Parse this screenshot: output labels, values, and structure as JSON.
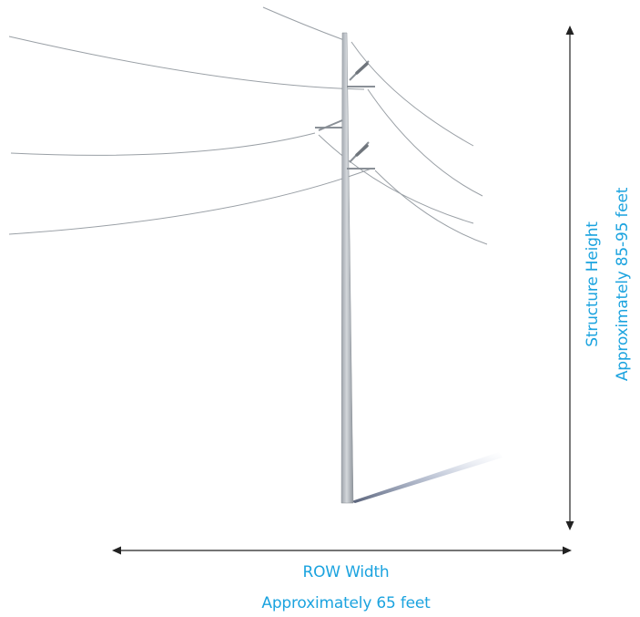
{
  "diagram": {
    "height_dimension": {
      "label": "Structure Height",
      "value": "Approximately 85-95 feet"
    },
    "width_dimension": {
      "label": "ROW Width",
      "value": "Approximately 65 feet"
    },
    "colors": {
      "annotation_text": "#1ba3df",
      "arrow": "#222222",
      "pole": "#b9bec4",
      "wire": "#9aa0a6"
    }
  }
}
